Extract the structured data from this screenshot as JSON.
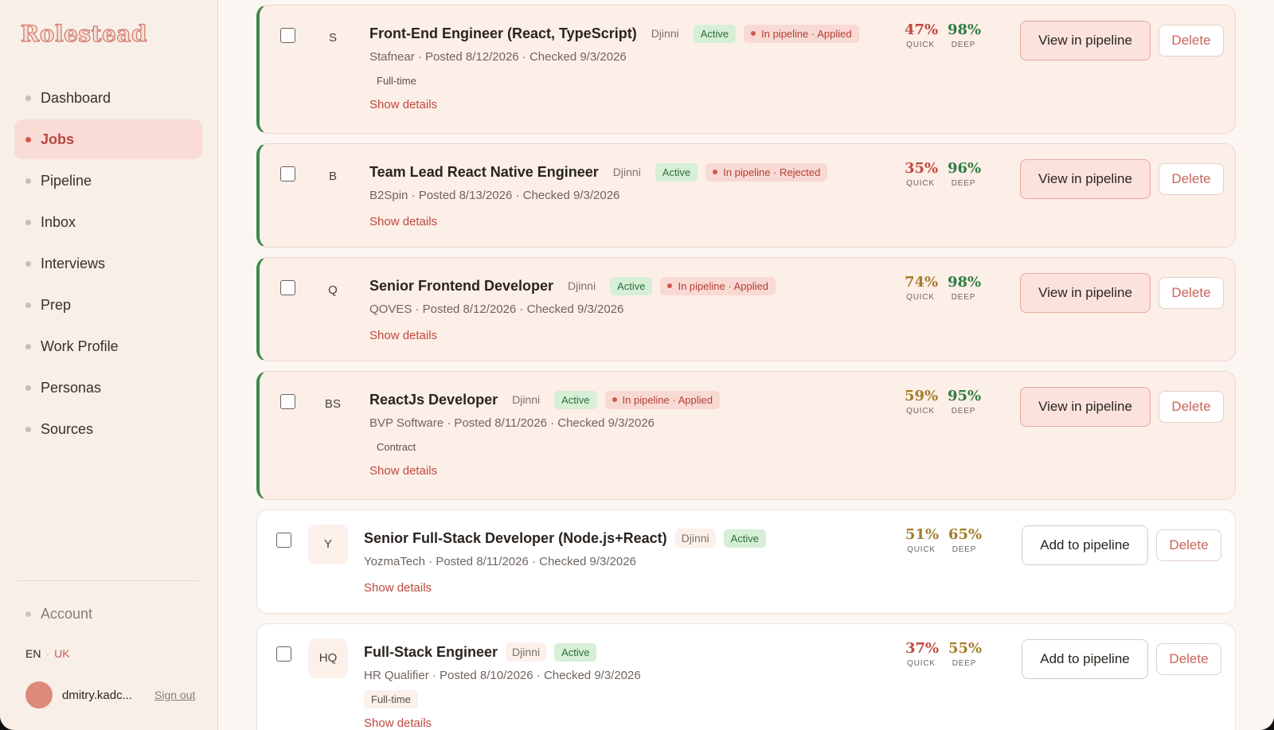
{
  "app": {
    "logo": "Rolestead"
  },
  "sidebar": {
    "items": [
      {
        "label": "Dashboard"
      },
      {
        "label": "Jobs"
      },
      {
        "label": "Pipeline"
      },
      {
        "label": "Inbox"
      },
      {
        "label": "Interviews"
      },
      {
        "label": "Prep"
      },
      {
        "label": "Work Profile"
      },
      {
        "label": "Personas"
      },
      {
        "label": "Sources"
      }
    ],
    "active_item": "Jobs",
    "account_label": "Account",
    "lang": {
      "en": "EN",
      "separator": "·",
      "uk": "UK"
    },
    "user": {
      "name": "dmitry.kadc...",
      "sign_out": "Sign out"
    }
  },
  "colors": {
    "accent": "#c0483d",
    "active_green": "#3d8b4a",
    "score_red": "#c0483d",
    "score_olive": "#a47d2c",
    "score_green": "#2f7d43"
  },
  "jobs": [
    {
      "initials": "S",
      "title": "Front-End Engineer (React, TypeScript)",
      "source": "Djinni",
      "status": "Active",
      "pipeline_badge": "In pipeline · Applied",
      "meta": "Stafnear · Posted 8/12/2026 · Checked 9/3/2026",
      "type": "Full-time",
      "show_details": "Show details",
      "quick": "47%",
      "quick_label": "QUICK",
      "deep": "98%",
      "deep_label": "DEEP",
      "action": "View in pipeline",
      "delete": "Delete"
    },
    {
      "initials": "B",
      "title": "Team Lead React Native Engineer",
      "source": "Djinni",
      "status": "Active",
      "pipeline_badge": "In pipeline · Rejected",
      "meta": "B2Spin · Posted 8/13/2026 · Checked 9/3/2026",
      "type": "",
      "show_details": "Show details",
      "quick": "35%",
      "quick_label": "QUICK",
      "deep": "96%",
      "deep_label": "DEEP",
      "action": "View in pipeline",
      "delete": "Delete"
    },
    {
      "initials": "Q",
      "title": "Senior Frontend Developer",
      "source": "Djinni",
      "status": "Active",
      "pipeline_badge": "In pipeline · Applied",
      "meta": "QOVES · Posted 8/12/2026 · Checked 9/3/2026",
      "type": "",
      "show_details": "Show details",
      "quick": "74%",
      "quick_label": "QUICK",
      "deep": "98%",
      "deep_label": "DEEP",
      "action": "View in pipeline",
      "delete": "Delete"
    },
    {
      "initials": "BS",
      "title": "ReactJs Developer",
      "source": "Djinni",
      "status": "Active",
      "pipeline_badge": "In pipeline · Applied",
      "meta": "BVP Software · Posted 8/11/2026 · Checked 9/3/2026",
      "type": "Contract",
      "show_details": "Show details",
      "quick": "59%",
      "quick_label": "QUICK",
      "deep": "95%",
      "deep_label": "DEEP",
      "action": "View in pipeline",
      "delete": "Delete"
    },
    {
      "initials": "Y",
      "title": "Senior Full-Stack Developer (Node.js+React)",
      "source": "Djinni",
      "status": "Active",
      "pipeline_badge": "",
      "meta": "YozmaTech · Posted 8/11/2026 · Checked 9/3/2026",
      "type": "",
      "show_details": "Show details",
      "quick": "51%",
      "quick_label": "QUICK",
      "deep": "65%",
      "deep_label": "DEEP",
      "action": "Add to pipeline",
      "delete": "Delete"
    },
    {
      "initials": "HQ",
      "title": "Full-Stack Engineer",
      "source": "Djinni",
      "status": "Active",
      "pipeline_badge": "",
      "meta": "HR Qualifier · Posted 8/10/2026 · Checked 9/3/2026",
      "type": "Full-time",
      "show_details": "Show details",
      "quick": "37%",
      "quick_label": "QUICK",
      "deep": "55%",
      "deep_label": "DEEP",
      "action": "Add to pipeline",
      "delete": "Delete"
    }
  ]
}
